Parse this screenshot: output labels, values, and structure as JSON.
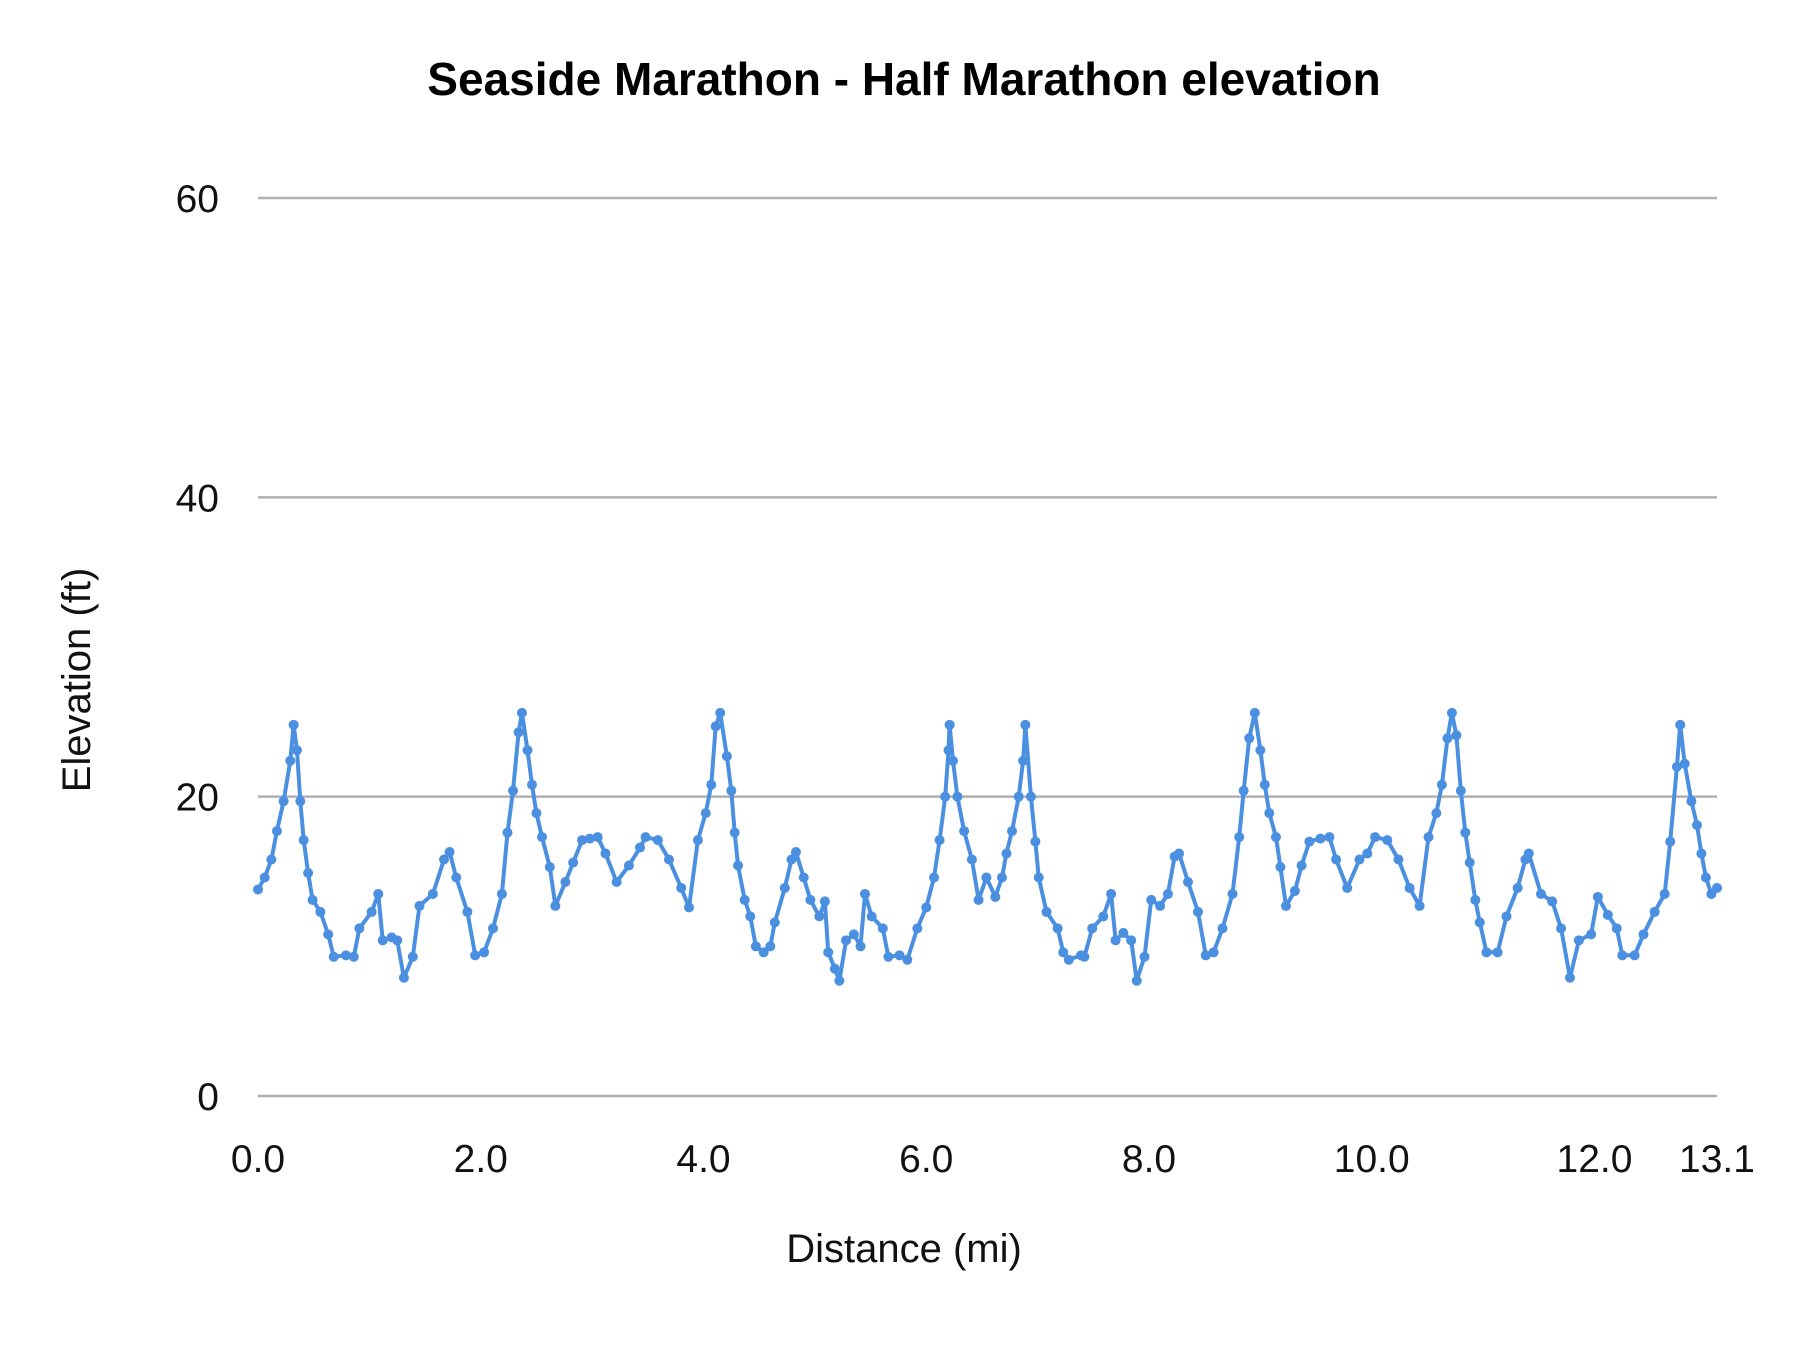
{
  "chart_data": {
    "type": "line",
    "title": "Seaside Marathon - Half Marathon elevation",
    "xlabel": "Distance (mi)",
    "ylabel": "Elevation (ft)",
    "xlim": [
      0,
      13.1
    ],
    "ylim": [
      0,
      60
    ],
    "x_ticks": [
      0,
      2,
      4,
      6,
      8,
      10,
      12,
      13.1
    ],
    "x_tick_labels": [
      "0.0",
      "2.0",
      "4.0",
      "6.0",
      "8.0",
      "10.0",
      "12.0",
      "13.1"
    ],
    "y_ticks": [
      0,
      20,
      40,
      60
    ],
    "y_tick_labels": [
      "0",
      "20",
      "40",
      "60"
    ],
    "grid": "horizontal",
    "legend": "none",
    "color": "#4a8fe0",
    "markers": true,
    "x": [
      0,
      0.06,
      0.12,
      0.17,
      0.23,
      0.29,
      0.32,
      0.35,
      0.38,
      0.41,
      0.45,
      0.49,
      0.56,
      0.63,
      0.68,
      0.79,
      0.86,
      0.91,
      1.02,
      1.08,
      1.12,
      1.2,
      1.25,
      1.31,
      1.39,
      1.45,
      1.57,
      1.67,
      1.72,
      1.78,
      1.88,
      1.95,
      2.03,
      2.11,
      2.19,
      2.24,
      2.29,
      2.34,
      2.37,
      2.42,
      2.46,
      2.5,
      2.55,
      2.62,
      2.67,
      2.76,
      2.83,
      2.91,
      2.98,
      3.05,
      3.12,
      3.22,
      3.33,
      3.43,
      3.48,
      3.59,
      3.69,
      3.8,
      3.87,
      3.95,
      4.02,
      4.07,
      4.11,
      4.15,
      4.21,
      4.25,
      4.28,
      4.31,
      4.37,
      4.42,
      4.47,
      4.54,
      4.6,
      4.64,
      4.73,
      4.79,
      4.83,
      4.9,
      4.96,
      5.04,
      5.09,
      5.12,
      5.18,
      5.22,
      5.28,
      5.35,
      5.41,
      5.45,
      5.51,
      5.61,
      5.66,
      5.76,
      5.83,
      5.92,
      6,
      6.07,
      6.12,
      6.17,
      6.2,
      6.21,
      6.24,
      6.28,
      6.34,
      6.41,
      6.47,
      6.54,
      6.62,
      6.68,
      6.72,
      6.77,
      6.83,
      6.87,
      6.89,
      6.94,
      6.98,
      7.01,
      7.08,
      7.18,
      7.23,
      7.28,
      7.39,
      7.42,
      7.49,
      7.59,
      7.66,
      7.7,
      7.77,
      7.84,
      7.89,
      7.96,
      8.02,
      8.1,
      8.17,
      8.23,
      8.27,
      8.35,
      8.44,
      8.51,
      8.58,
      8.66,
      8.75,
      8.81,
      8.85,
      8.9,
      8.95,
      9,
      9.04,
      9.08,
      9.14,
      9.18,
      9.23,
      9.31,
      9.37,
      9.44,
      9.54,
      9.62,
      9.68,
      9.78,
      9.89,
      9.96,
      10.03,
      10.14,
      10.24,
      10.34,
      10.43,
      10.51,
      10.58,
      10.63,
      10.68,
      10.72,
      10.76,
      10.8,
      10.84,
      10.88,
      10.93,
      10.97,
      11.03,
      11.13,
      11.21,
      11.31,
      11.38,
      11.41,
      11.52,
      11.62,
      11.7,
      11.78,
      11.86,
      11.97,
      12.03,
      12.12,
      12.2,
      12.25,
      12.36,
      12.44,
      12.54,
      12.63,
      12.68,
      12.74,
      12.77,
      12.81,
      12.87,
      12.92,
      12.96,
      13,
      13.05,
      13.1
    ],
    "y": [
      13.8,
      14.6,
      15.8,
      17.7,
      19.7,
      22.4,
      24.8,
      23.1,
      19.7,
      17.1,
      14.9,
      13.1,
      12.3,
      10.8,
      9.3,
      9.4,
      9.3,
      11.2,
      12.3,
      13.5,
      10.4,
      10.6,
      10.4,
      7.9,
      9.3,
      12.7,
      13.5,
      15.8,
      16.3,
      14.6,
      12.3,
      9.4,
      9.6,
      11.2,
      13.5,
      17.6,
      20.4,
      24.3,
      25.6,
      23.1,
      20.8,
      18.9,
      17.3,
      15.3,
      12.7,
      14.3,
      15.6,
      17.1,
      17.2,
      17.3,
      16.2,
      14.3,
      15.4,
      16.6,
      17.3,
      17.1,
      15.8,
      13.9,
      12.6,
      17.1,
      18.9,
      20.8,
      24.7,
      25.6,
      22.7,
      20.4,
      17.6,
      15.4,
      13.1,
      12,
      10,
      9.6,
      10,
      11.6,
      13.9,
      15.8,
      16.3,
      14.6,
      13.1,
      12,
      13,
      9.6,
      8.5,
      7.7,
      10.4,
      10.8,
      10,
      13.5,
      12,
      11.2,
      9.3,
      9.4,
      9.1,
      11.2,
      12.6,
      14.6,
      17.1,
      20,
      23.1,
      24.8,
      22.4,
      20,
      17.7,
      15.8,
      13.1,
      14.6,
      13.3,
      14.6,
      16.2,
      17.7,
      20,
      22.4,
      24.8,
      20,
      17,
      14.6,
      12.3,
      11.2,
      9.6,
      9.1,
      9.4,
      9.3,
      11.2,
      12,
      13.5,
      10.4,
      10.9,
      10.4,
      7.7,
      9.3,
      13.1,
      12.7,
      13.5,
      16,
      16.2,
      14.3,
      12.3,
      9.4,
      9.6,
      11.2,
      13.5,
      17.3,
      20.4,
      23.9,
      25.6,
      23.1,
      20.8,
      18.9,
      17.3,
      15.3,
      12.7,
      13.7,
      15.4,
      17,
      17.2,
      17.3,
      15.8,
      13.9,
      15.8,
      16.2,
      17.3,
      17.1,
      15.8,
      13.9,
      12.7,
      17.3,
      18.9,
      20.8,
      23.9,
      25.6,
      24.1,
      20.4,
      17.6,
      15.6,
      13.1,
      11.6,
      9.6,
      9.6,
      12,
      13.9,
      15.8,
      16.2,
      13.5,
      13,
      11.2,
      7.9,
      10.4,
      10.8,
      13.3,
      12.1,
      11.2,
      9.4,
      9.4,
      10.8,
      12.3,
      13.5,
      17,
      22,
      24.8,
      22.2,
      19.7,
      18.1,
      16.2,
      14.6,
      13.5,
      13.9
    ]
  }
}
